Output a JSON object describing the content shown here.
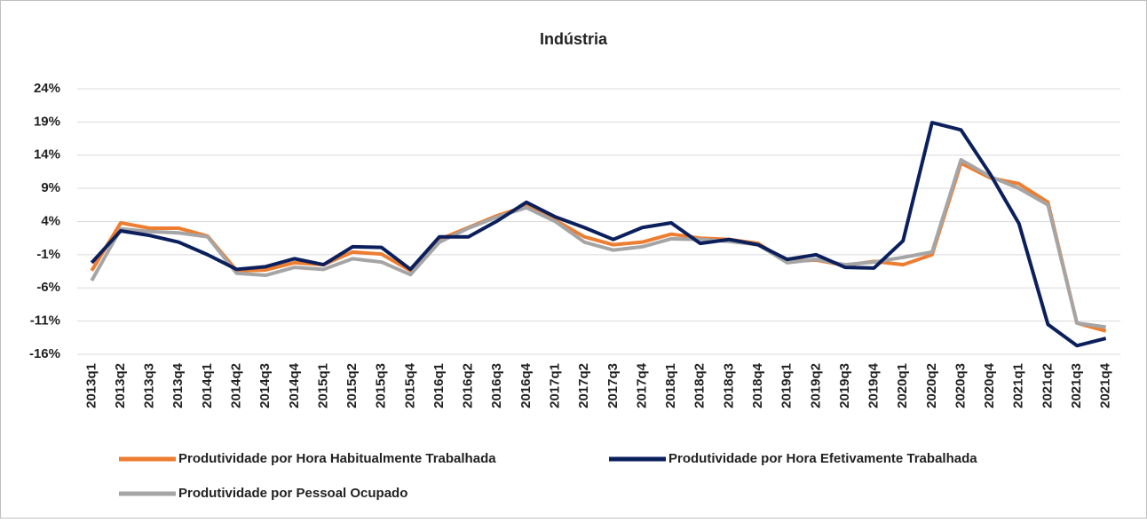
{
  "chart_data": {
    "type": "line",
    "title": "Indústria",
    "categories": [
      "2013q1",
      "2013q2",
      "2013q3",
      "2013q4",
      "2014q1",
      "2014q2",
      "2014q3",
      "2014q4",
      "2015q1",
      "2015q2",
      "2015q3",
      "2015q4",
      "2016q1",
      "2016q2",
      "2016q3",
      "2016q4",
      "2017q1",
      "2017q2",
      "2017q3",
      "2017q4",
      "2018q1",
      "2018q2",
      "2018q3",
      "2018q4",
      "2019q1",
      "2019q2",
      "2019q3",
      "2019q4",
      "2020q1",
      "2020q2",
      "2020q3",
      "2020q4",
      "2021q1",
      "2021q2",
      "2021q3",
      "2021q4"
    ],
    "series": [
      {
        "name": "Produtividade por Hora Habitualmente Trabalhada",
        "color": "#ed7d31",
        "values": [
          -3.4,
          3.8,
          3.0,
          3.0,
          1.8,
          -3.4,
          -3.3,
          -2.2,
          -2.5,
          -0.6,
          -0.9,
          -3.4,
          1.3,
          3.1,
          4.9,
          6.3,
          4.2,
          1.7,
          0.5,
          0.9,
          2.1,
          1.5,
          1.3,
          0.7,
          -2.0,
          -1.8,
          -2.6,
          -2.0,
          -2.5,
          -1.0,
          12.8,
          10.6,
          9.7,
          6.9,
          -11.3,
          -12.5
        ]
      },
      {
        "name": "Produtividade por Hora Efetivamente Trabalhada",
        "color": "#0b1f5c",
        "values": [
          -2.2,
          2.6,
          1.9,
          0.9,
          -1.0,
          -3.2,
          -2.8,
          -1.6,
          -2.5,
          0.2,
          0.1,
          -3.2,
          1.7,
          1.7,
          4.1,
          6.9,
          4.7,
          3.1,
          1.3,
          3.1,
          3.8,
          0.7,
          1.3,
          0.5,
          -1.7,
          -1.0,
          -2.9,
          -3.0,
          1.1,
          18.9,
          17.8,
          11.2,
          3.7,
          -11.5,
          -14.7,
          -13.6
        ]
      },
      {
        "name": "Produtividade por Pessoal Ocupado",
        "color": "#a5a5a5",
        "values": [
          -4.9,
          2.9,
          2.5,
          2.3,
          1.7,
          -3.8,
          -4.1,
          -2.9,
          -3.2,
          -1.6,
          -2.1,
          -4.0,
          0.9,
          3.0,
          4.7,
          6.1,
          4.0,
          0.9,
          -0.3,
          0.2,
          1.4,
          1.3,
          1.0,
          0.5,
          -2.2,
          -1.7,
          -2.5,
          -2.1,
          -1.4,
          -0.6,
          13.3,
          10.8,
          9.0,
          6.5,
          -11.3,
          -11.9
        ]
      }
    ],
    "ylim": [
      -16,
      24
    ],
    "yticks": [
      {
        "value": -16,
        "label": "-16%"
      },
      {
        "value": -11,
        "label": "-11%"
      },
      {
        "value": -6,
        "label": "-6%"
      },
      {
        "value": -1,
        "label": "-1%"
      },
      {
        "value": 4,
        "label": "4%"
      },
      {
        "value": 9,
        "label": "9%"
      },
      {
        "value": 14,
        "label": "14%"
      },
      {
        "value": 19,
        "label": "19%"
      },
      {
        "value": 24,
        "label": "24%"
      }
    ],
    "grid": true
  }
}
